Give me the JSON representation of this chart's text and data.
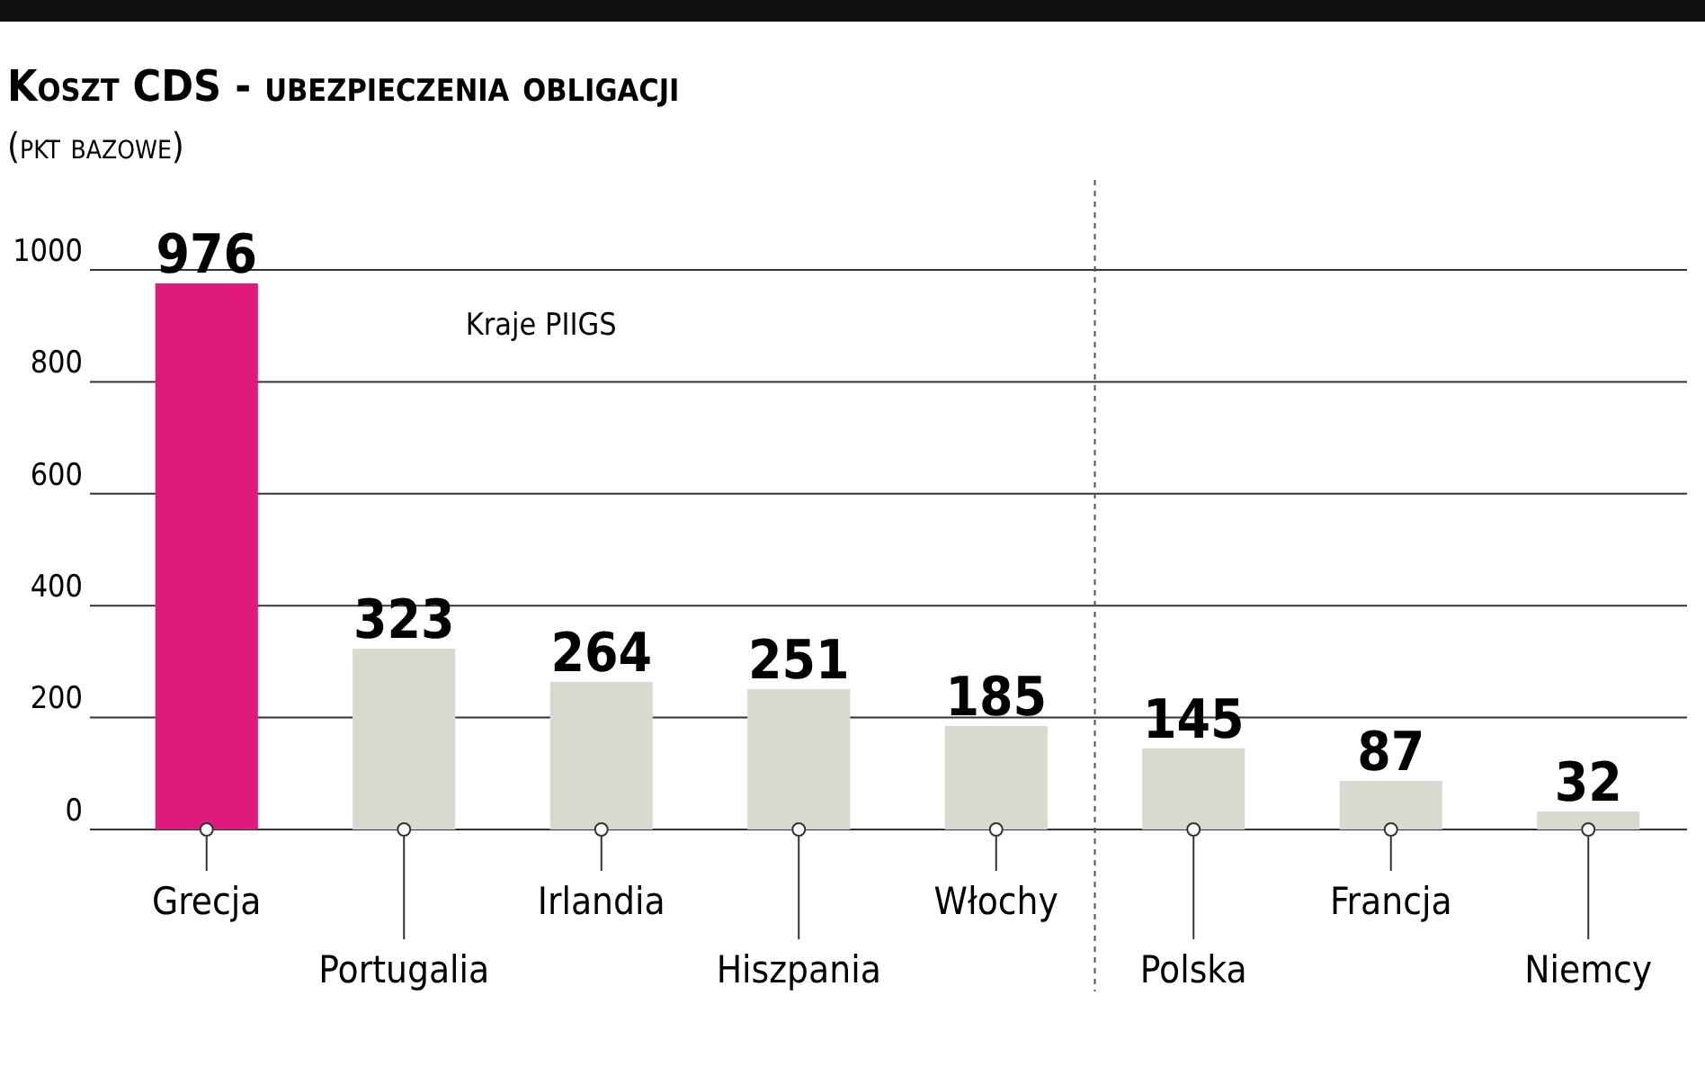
{
  "chart_data": {
    "type": "bar",
    "title": "Koszt CDS - ubezpieczenia obligacji",
    "subtitle": "(pkt bazowe)",
    "categories": [
      "Grecja",
      "Portugalia",
      "Irlandia",
      "Hiszpania",
      "Włochy",
      "Polska",
      "Francja",
      "Niemcy"
    ],
    "values": [
      976,
      323,
      264,
      251,
      185,
      145,
      87,
      32
    ],
    "colors": [
      "#e0197d",
      "#d9d9cf",
      "#d9d9cf",
      "#d9d9cf",
      "#d9d9cf",
      "#d9d9cf",
      "#d9d9cf",
      "#d9d9cf"
    ],
    "ylim": [
      0,
      1000
    ],
    "yticks": [
      0,
      200,
      400,
      600,
      800,
      1000
    ],
    "grid": "y",
    "data_labels": true,
    "annotations": [
      "Kraje PIIGS"
    ],
    "ref_lines": [
      {
        "axis": "x",
        "value": "Polska",
        "line_style": "dashed",
        "color": "#555555"
      }
    ]
  }
}
